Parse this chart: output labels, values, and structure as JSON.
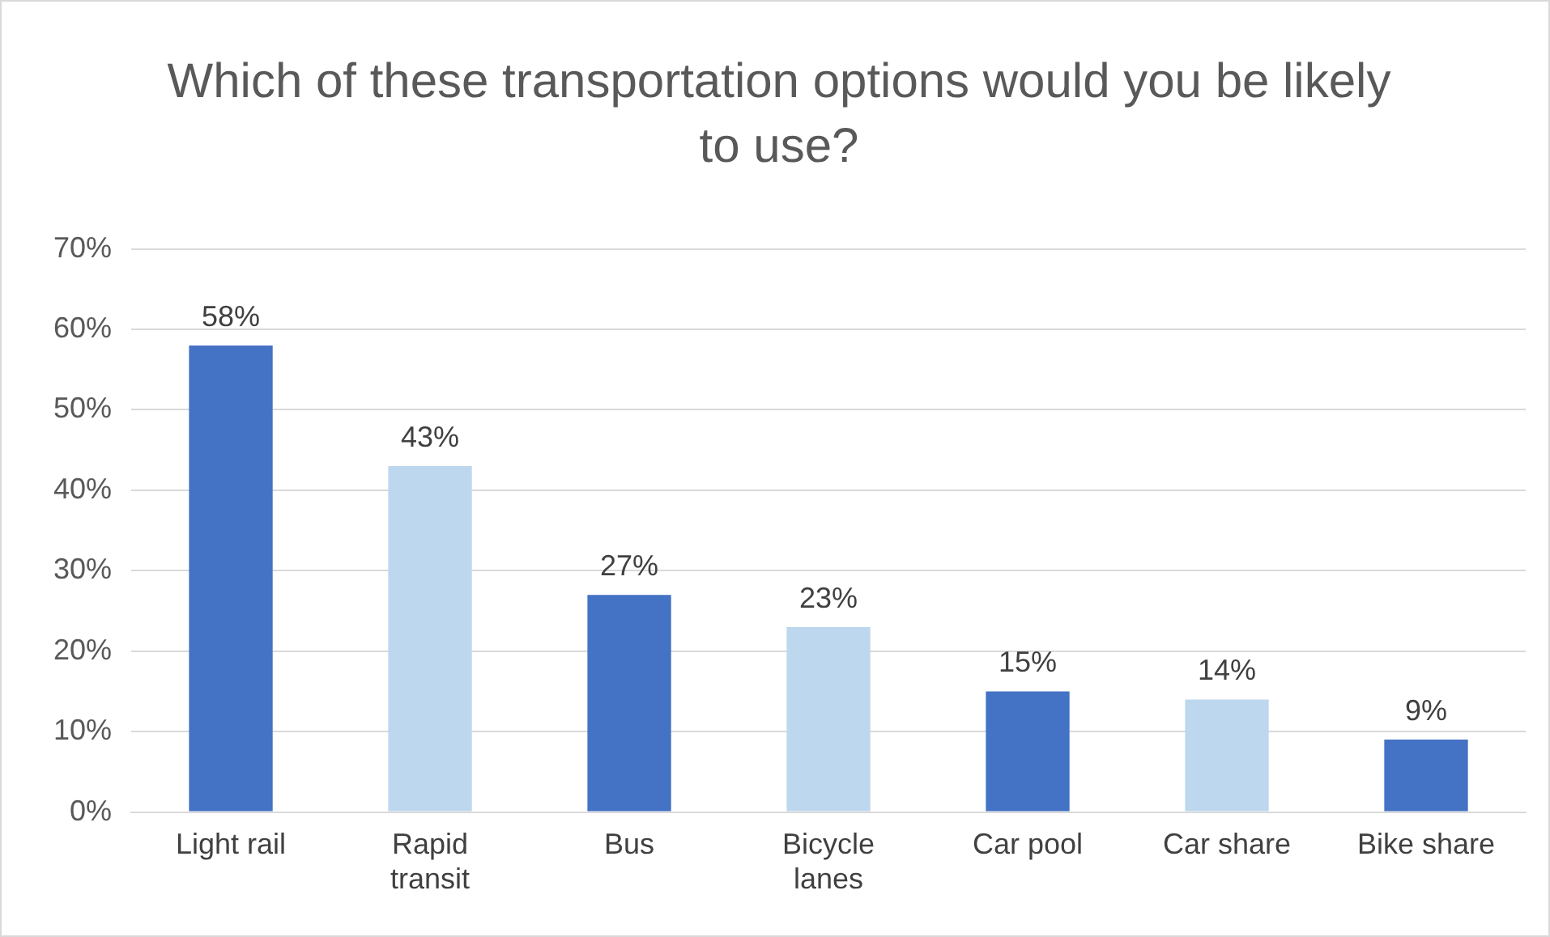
{
  "chart_data": {
    "type": "bar",
    "title": "Which of these transportation options would you be likely to use?",
    "categories": [
      "Light rail",
      "Rapid transit",
      "Bus",
      "Bicycle lanes",
      "Car pool",
      "Car share",
      "Bike share"
    ],
    "values": [
      58,
      43,
      27,
      23,
      15,
      14,
      9
    ],
    "colors": [
      "#4472c4",
      "#bdd7ee",
      "#4472c4",
      "#bdd7ee",
      "#4472c4",
      "#bdd7ee",
      "#4472c4"
    ],
    "value_labels": [
      "58%",
      "43%",
      "27%",
      "23%",
      "15%",
      "14%",
      "9%"
    ],
    "ylim": [
      0,
      70
    ],
    "yticks": [
      {
        "value": 0,
        "label": "0%"
      },
      {
        "value": 10,
        "label": "10%"
      },
      {
        "value": 20,
        "label": "20%"
      },
      {
        "value": 30,
        "label": "30%"
      },
      {
        "value": 40,
        "label": "40%"
      },
      {
        "value": 50,
        "label": "50%"
      },
      {
        "value": 60,
        "label": "60%"
      },
      {
        "value": 70,
        "label": "70%"
      }
    ],
    "grid": "y"
  }
}
